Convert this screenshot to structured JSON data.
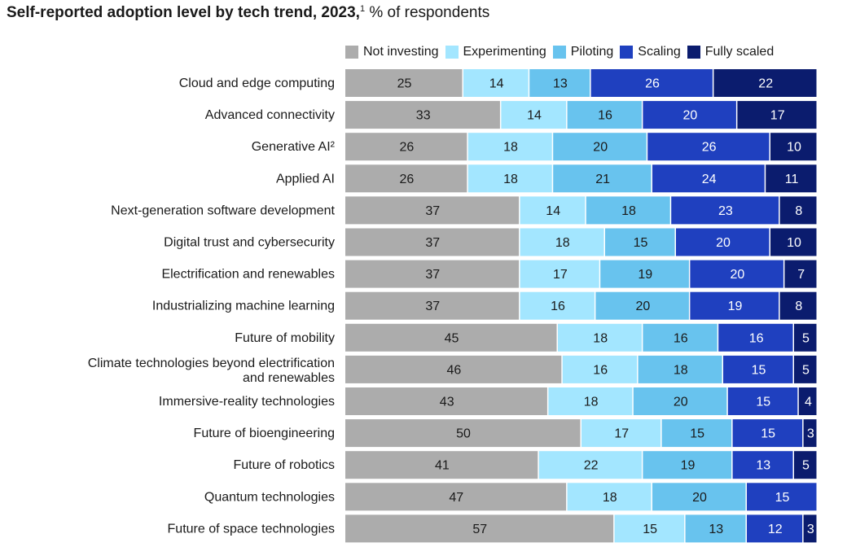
{
  "title": {
    "main": "Self-reported adoption level by tech trend, 2023,",
    "footnote": "1",
    "sub": " % of respondents"
  },
  "colors": {
    "Not investing": "#acacac",
    "Experimenting": "#a3e6ff",
    "Piloting": "#68c3ee",
    "Scaling": "#1f40bf",
    "Fully scaled": "#0b1c6e"
  },
  "chart_data": {
    "type": "bar",
    "orientation": "horizontal",
    "stacked": true,
    "legend_position": "top",
    "grid": false,
    "categories": [
      "Cloud and edge computing",
      "Advanced connectivity",
      "Generative AI²",
      "Applied AI",
      "Next-generation software development",
      "Digital trust and cybersecurity",
      "Electrification and renewables",
      "Industrializing machine learning",
      "Future of mobility",
      "Climate technologies beyond electrification and renewables",
      "Immersive-reality technologies",
      "Future of bioengineering",
      "Future of robotics",
      "Quantum technologies",
      "Future of space technologies"
    ],
    "series": [
      {
        "name": "Not investing",
        "values": [
          25,
          33,
          26,
          26,
          37,
          37,
          37,
          37,
          45,
          46,
          43,
          50,
          41,
          47,
          57
        ]
      },
      {
        "name": "Experimenting",
        "values": [
          14,
          14,
          18,
          18,
          14,
          18,
          17,
          16,
          18,
          16,
          18,
          17,
          22,
          18,
          15
        ]
      },
      {
        "name": "Piloting",
        "values": [
          13,
          16,
          20,
          21,
          18,
          15,
          19,
          20,
          16,
          18,
          20,
          15,
          19,
          20,
          13
        ]
      },
      {
        "name": "Scaling",
        "values": [
          26,
          20,
          26,
          24,
          23,
          20,
          20,
          19,
          16,
          15,
          15,
          15,
          13,
          15,
          12
        ]
      },
      {
        "name": "Fully scaled",
        "values": [
          22,
          17,
          10,
          11,
          8,
          10,
          7,
          8,
          5,
          5,
          4,
          3,
          5,
          0,
          3
        ]
      }
    ]
  }
}
